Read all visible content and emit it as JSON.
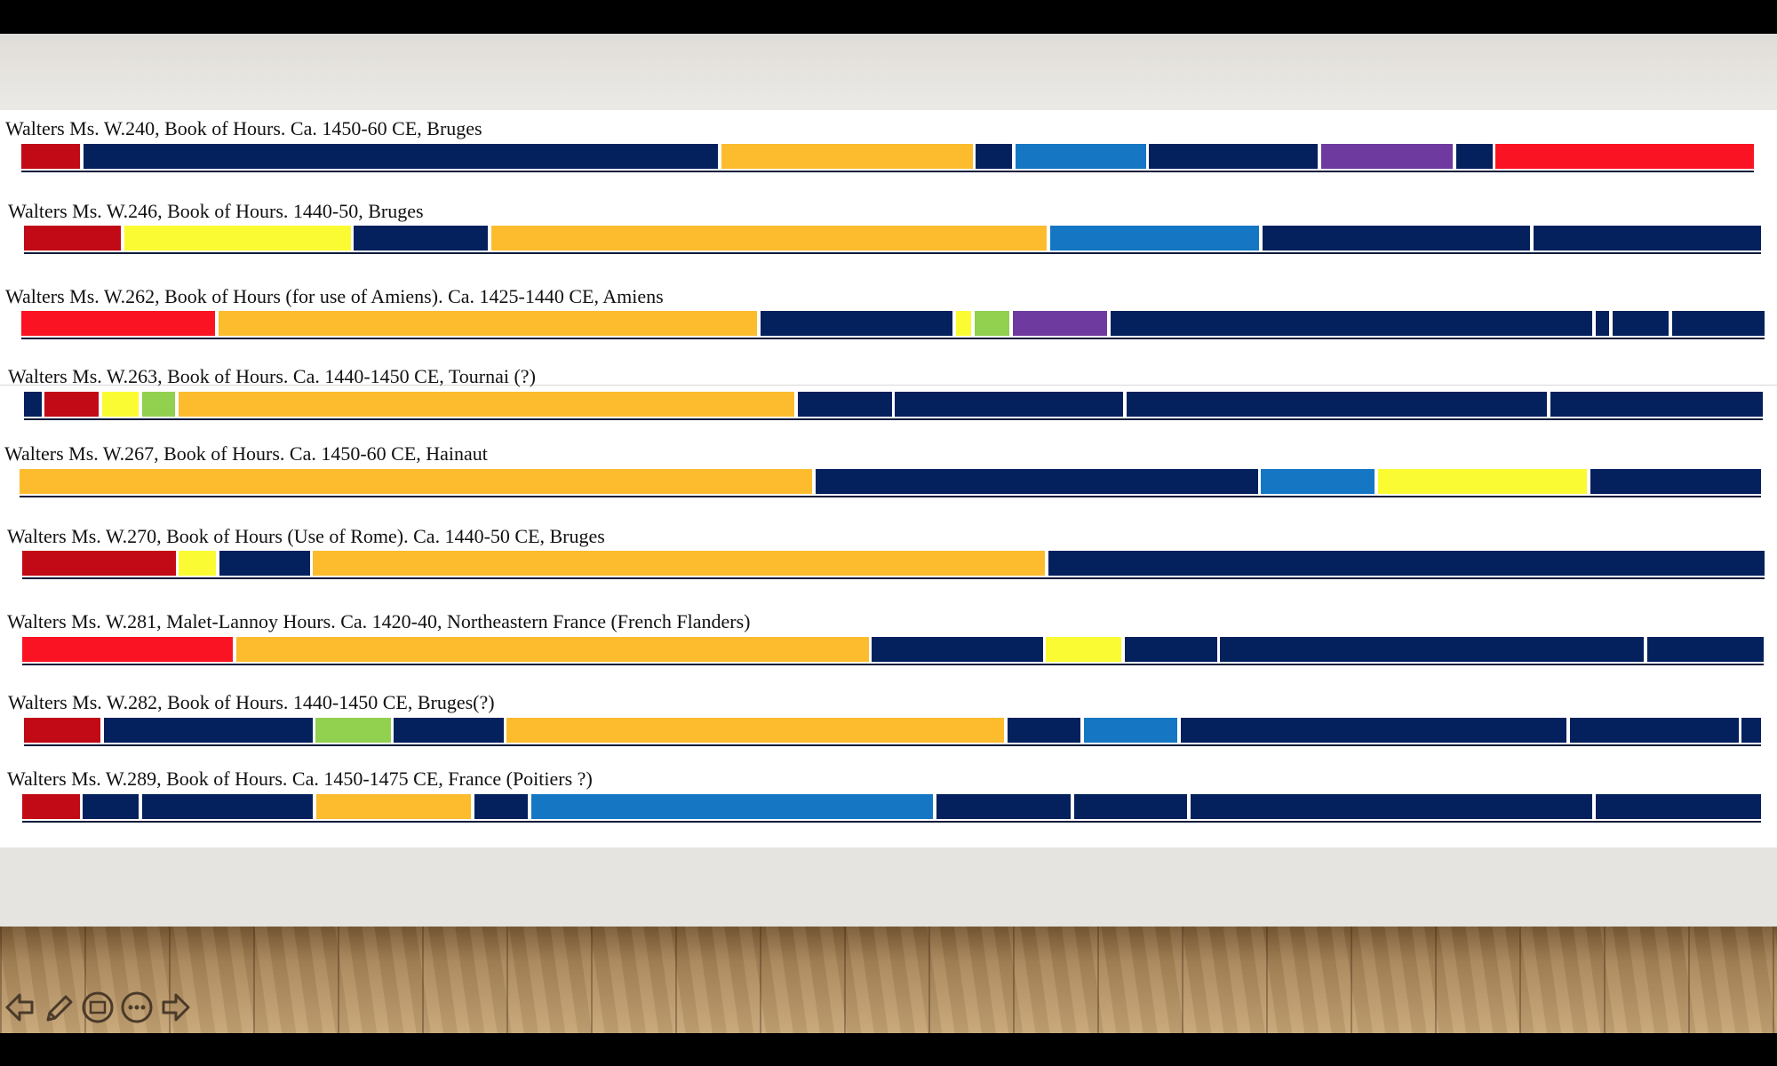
{
  "colors": {
    "crimson": "#c10a16",
    "red": "#fa1423",
    "navy": "#04205d",
    "gold": "#fcbc2e",
    "yellow": "#fbfb33",
    "blue": "#1577c4",
    "purple": "#6f3aa0",
    "green": "#92d050"
  },
  "manuscripts": [
    {
      "title": "Walters Ms. W.240, Book of Hours. Ca. 1450-60 CE, Bruges",
      "segments": [
        [
          "crimson",
          0,
          3.4
        ],
        [
          "navy",
          3.6,
          40.2
        ],
        [
          "gold",
          40.4,
          54.9
        ],
        [
          "navy",
          55.1,
          57.2
        ],
        [
          "blue",
          57.4,
          64.9
        ],
        [
          "navy",
          65.1,
          74.8
        ],
        [
          "purple",
          75.0,
          82.6
        ],
        [
          "navy",
          82.8,
          84.9
        ],
        [
          "red",
          85.1,
          100
        ]
      ]
    },
    {
      "title": "Walters Ms. W.246, Book of Hours. 1440-50, Bruges",
      "segments": [
        [
          "crimson",
          0,
          5.6
        ],
        [
          "yellow",
          5.8,
          18.8
        ],
        [
          "navy",
          19.0,
          26.7
        ],
        [
          "gold",
          26.9,
          58.9
        ],
        [
          "blue",
          59.1,
          71.1
        ],
        [
          "navy",
          71.3,
          86.7
        ],
        [
          "navy",
          86.9,
          100
        ]
      ]
    },
    {
      "title": "Walters Ms. W.262, Book of Hours (for use of Amiens). Ca. 1425-1440 CE, Amiens",
      "segments": [
        [
          "red",
          0,
          11.1
        ],
        [
          "gold",
          11.3,
          42.2
        ],
        [
          "navy",
          42.4,
          53.4
        ],
        [
          "yellow",
          53.6,
          54.5
        ],
        [
          "green",
          54.7,
          56.7
        ],
        [
          "purple",
          56.9,
          62.3
        ],
        [
          "navy",
          62.5,
          90.1
        ],
        [
          "navy",
          90.3,
          91.1
        ],
        [
          "navy",
          91.3,
          94.5
        ],
        [
          "navy",
          94.7,
          100
        ]
      ]
    },
    {
      "title": "Walters Ms. W.263, Book of Hours. Ca. 1440-1450 CE, Tournai (?)",
      "segments": [
        [
          "navy",
          0,
          1.0
        ],
        [
          "crimson",
          1.2,
          4.3
        ],
        [
          "yellow",
          4.5,
          6.6
        ],
        [
          "green",
          6.8,
          8.7
        ],
        [
          "gold",
          8.9,
          44.3
        ],
        [
          "navy",
          44.5,
          49.9
        ],
        [
          "navy",
          50.1,
          63.2
        ],
        [
          "navy",
          63.4,
          87.6
        ],
        [
          "navy",
          87.8,
          100
        ]
      ]
    },
    {
      "title": "Walters Ms. W.267, Book of Hours. Ca. 1450-60 CE, Hainaut",
      "segments": [
        [
          "gold",
          0,
          45.5
        ],
        [
          "navy",
          45.7,
          71.1
        ],
        [
          "blue",
          71.3,
          77.8
        ],
        [
          "yellow",
          78.0,
          90.0
        ],
        [
          "navy",
          90.2,
          100
        ]
      ]
    },
    {
      "title": "Walters Ms. W.270, Book of Hours (Use of Rome). Ca. 1440-50 CE, Bruges",
      "segments": [
        [
          "crimson",
          0,
          8.8
        ],
        [
          "yellow",
          9.0,
          11.1
        ],
        [
          "navy",
          11.3,
          16.5
        ],
        [
          "gold",
          16.7,
          58.7
        ],
        [
          "navy",
          58.9,
          100
        ]
      ]
    },
    {
      "title": "Walters Ms. W.281, Malet-Lannoy Hours. Ca. 1420-40, Northeastern France (French Flanders)",
      "segments": [
        [
          "red",
          0,
          12.1
        ],
        [
          "gold",
          12.3,
          48.6
        ],
        [
          "navy",
          48.8,
          58.6
        ],
        [
          "yellow",
          58.8,
          63.1
        ],
        [
          "navy",
          63.3,
          68.6
        ],
        [
          "navy",
          68.8,
          93.1
        ],
        [
          "navy",
          93.3,
          100
        ]
      ]
    },
    {
      "title": "Walters Ms. W.282, Book of Hours. 1440-1450 CE, Bruges(?)",
      "segments": [
        [
          "crimson",
          0,
          4.4
        ],
        [
          "navy",
          4.6,
          16.6
        ],
        [
          "green",
          16.8,
          21.1
        ],
        [
          "navy",
          21.3,
          27.6
        ],
        [
          "gold",
          27.8,
          56.4
        ],
        [
          "navy",
          56.6,
          60.8
        ],
        [
          "blue",
          61.0,
          66.4
        ],
        [
          "navy",
          66.6,
          88.8
        ],
        [
          "navy",
          89.0,
          98.7
        ],
        [
          "navy",
          98.9,
          100
        ]
      ]
    },
    {
      "title": "Walters Ms. W.289, Book of Hours. Ca. 1450-1475 CE, France (Poitiers ?)",
      "segments": [
        [
          "crimson",
          0,
          3.3
        ],
        [
          "navy",
          3.5,
          6.7
        ],
        [
          "navy",
          6.9,
          16.7
        ],
        [
          "gold",
          16.9,
          25.8
        ],
        [
          "navy",
          26.0,
          29.1
        ],
        [
          "blue",
          29.3,
          52.4
        ],
        [
          "navy",
          52.6,
          60.3
        ],
        [
          "navy",
          60.5,
          67.0
        ],
        [
          "navy",
          67.2,
          90.3
        ],
        [
          "navy",
          90.5,
          100
        ]
      ]
    }
  ],
  "nav": {
    "icons": [
      "back-arrow-icon",
      "pen-icon",
      "slides-icon",
      "more-icon",
      "forward-arrow-icon"
    ]
  }
}
